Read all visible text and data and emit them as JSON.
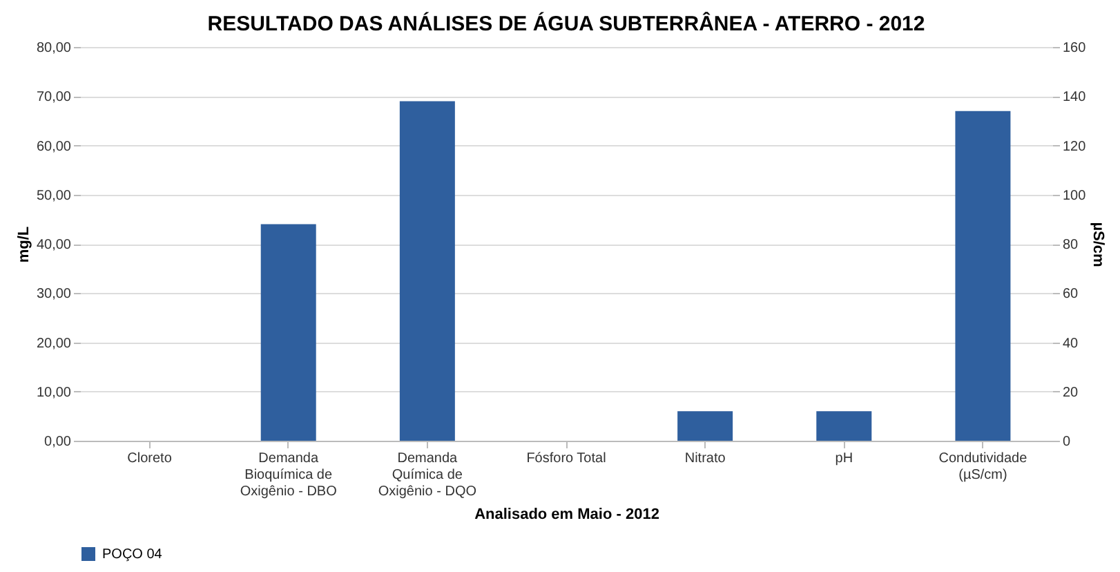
{
  "chart_data": {
    "type": "bar",
    "title": "RESULTADO DAS ANÁLISES DE ÁGUA SUBTERRÂNEA - ATERRO - 2012",
    "categories": [
      "Cloreto",
      "Demanda Bioquímica de Oxigênio - DBO",
      "Demanda Química de Oxigênio - DQO",
      "Fósforo Total",
      "Nitrato",
      "pH",
      "Condutividade (µS/cm)"
    ],
    "series": [
      {
        "name": "POÇO 04",
        "color": "#2f5f9e",
        "values": [
          0,
          44,
          69,
          0,
          6,
          6,
          null
        ]
      },
      {
        "color": "#2f5f9e",
        "axis": "y2",
        "values": [
          null,
          null,
          null,
          null,
          null,
          null,
          134
        ]
      }
    ],
    "xlabel": "Analisado em Maio - 2012",
    "ylabel": "mg/L",
    "y2label": "µS/cm",
    "ylim": [
      0,
      80
    ],
    "yticks": [
      {
        "value": 0,
        "label": "0,00"
      },
      {
        "value": 10,
        "label": "10,00"
      },
      {
        "value": 20,
        "label": "20,00"
      },
      {
        "value": 30,
        "label": "30,00"
      },
      {
        "value": 40,
        "label": "40,00"
      },
      {
        "value": 50,
        "label": "50,00"
      },
      {
        "value": 60,
        "label": "60,00"
      },
      {
        "value": 70,
        "label": "70,00"
      },
      {
        "value": 80,
        "label": "80,00"
      }
    ],
    "y2lim": [
      0,
      160
    ],
    "y2ticks": [
      0,
      20,
      40,
      60,
      80,
      100,
      120,
      140,
      160
    ],
    "grid": "y",
    "legend": "bottom"
  }
}
